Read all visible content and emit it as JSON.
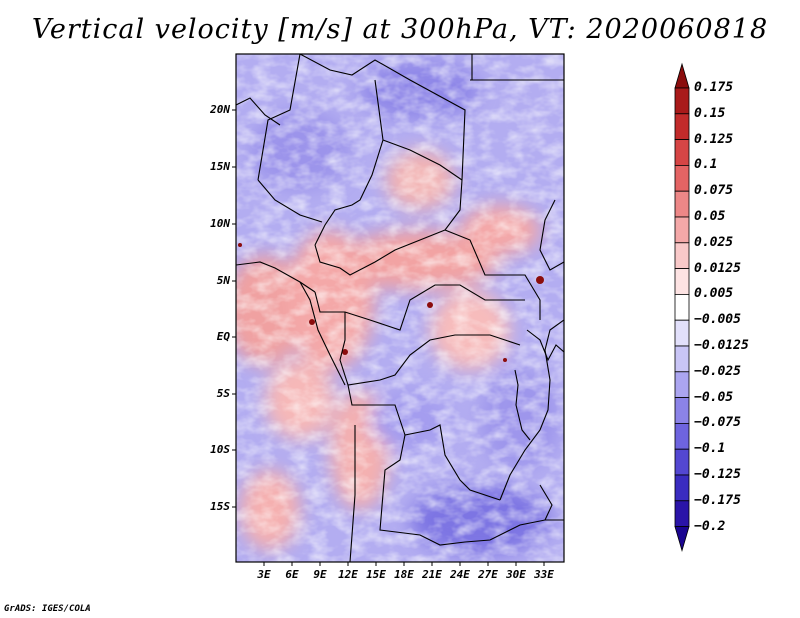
{
  "title": "Vertical velocity [m/s] at 300hPa, VT: 2020060818",
  "map": {
    "region": "Central Africa",
    "lat_labels": [
      "20N",
      "15N",
      "10N",
      "5N",
      "EQ",
      "5S",
      "10S",
      "15S"
    ],
    "lon_labels": [
      "3E",
      "6E",
      "9E",
      "12E",
      "15E",
      "18E",
      "21E",
      "24E",
      "27E",
      "30E",
      "33E"
    ]
  },
  "colorbar": {
    "labels": [
      "0.175",
      "0.15",
      "0.125",
      "0.1",
      "0.075",
      "0.05",
      "0.025",
      "0.0125",
      "0.005",
      "−0.005",
      "−0.0125",
      "−0.025",
      "−0.05",
      "−0.075",
      "−0.1",
      "−0.125",
      "−0.175",
      "−0.2"
    ],
    "colors": [
      "#8b0d0d",
      "#a91a1a",
      "#c22b2b",
      "#d64545",
      "#e46464",
      "#ed8787",
      "#f4a8a8",
      "#f9c9c9",
      "#fde3e3",
      "#ffffff",
      "#e2e0fb",
      "#c9c5f6",
      "#aba5f0",
      "#8b83e8",
      "#6e64df",
      "#5347d2",
      "#3a2cc0",
      "#2a14a8",
      "#1a0590"
    ]
  },
  "credit": "GrADS: IGES/COLA"
}
